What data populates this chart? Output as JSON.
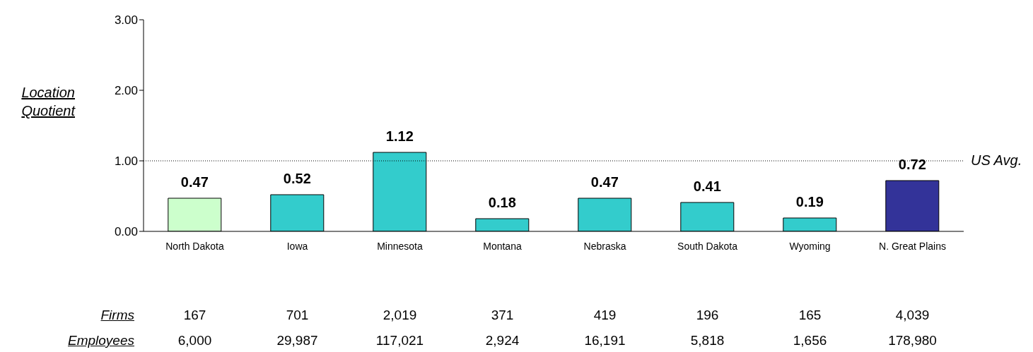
{
  "chart_data": {
    "type": "bar",
    "ylabel": "Location Quotient",
    "categories": [
      "North Dakota",
      "Iowa",
      "Minnesota",
      "Montana",
      "Nebraska",
      "South Dakota",
      "Wyoming",
      "N. Great Plains"
    ],
    "values": [
      0.47,
      0.52,
      1.12,
      0.18,
      0.47,
      0.41,
      0.19,
      0.72
    ],
    "colors": [
      "#ccffcc",
      "#33cccc",
      "#33cccc",
      "#33cccc",
      "#33cccc",
      "#33cccc",
      "#33cccc",
      "#333399"
    ],
    "data_labels": true,
    "ylim": [
      0,
      3
    ],
    "yticks": [
      {
        "value": 0,
        "label": "0.00"
      },
      {
        "value": 1,
        "label": "1.00"
      },
      {
        "value": 2,
        "label": "2.00"
      },
      {
        "value": 3,
        "label": "3.00"
      }
    ],
    "ref_lines": [
      {
        "axis": "y",
        "value": 1,
        "label": "US Avg.",
        "line_style": "dotted"
      }
    ],
    "grid": false,
    "annotations": [
      "Firms",
      "167",
      "701",
      "2,019",
      "371",
      "419",
      "196",
      "165",
      "4,039",
      "Employees",
      "6,000",
      "29,987",
      "117,021",
      "2,924",
      "16,191",
      "5,818",
      "1,656",
      "178,980"
    ]
  }
}
